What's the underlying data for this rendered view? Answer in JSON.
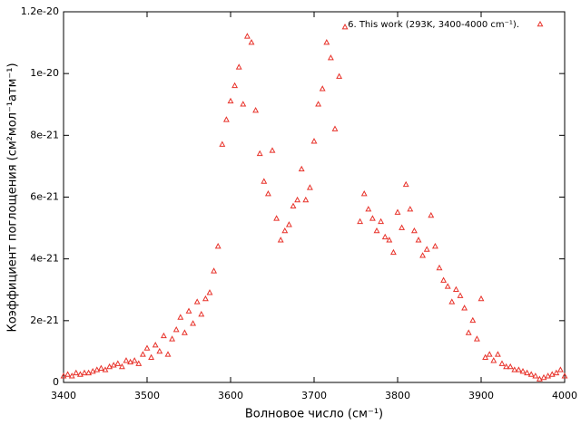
{
  "chart_data": {
    "type": "scatter",
    "xlabel": "Волновое число (см⁻¹)",
    "ylabel": "Коэффициент поглощения (см²мол⁻¹атм⁻¹)",
    "xlim": [
      3400,
      4000
    ],
    "xticks": [
      3400,
      3500,
      3600,
      3700,
      3800,
      3900,
      4000
    ],
    "ylim": [
      0,
      1.2e-20
    ],
    "yticks": [
      0,
      2e-21,
      4e-21,
      6e-21,
      8e-21,
      1e-20,
      1.2e-20
    ],
    "legend": "upper right",
    "series": [
      {
        "name": "6.  This work (293K, 3400-4000 cm⁻¹).",
        "color": "#e8322a",
        "x": [
          3400,
          3405,
          3410,
          3415,
          3420,
          3425,
          3430,
          3435,
          3440,
          3445,
          3450,
          3455,
          3460,
          3465,
          3470,
          3475,
          3480,
          3485,
          3490,
          3495,
          3500,
          3505,
          3510,
          3515,
          3520,
          3525,
          3530,
          3535,
          3540,
          3545,
          3550,
          3555,
          3560,
          3565,
          3570,
          3575,
          3580,
          3585,
          3590,
          3595,
          3600,
          3605,
          3610,
          3615,
          3620,
          3625,
          3630,
          3635,
          3640,
          3645,
          3650,
          3655,
          3660,
          3665,
          3670,
          3675,
          3680,
          3685,
          3690,
          3695,
          3700,
          3705,
          3710,
          3715,
          3720,
          3725,
          3730,
          3737,
          3755,
          3760,
          3765,
          3770,
          3775,
          3780,
          3785,
          3790,
          3795,
          3800,
          3805,
          3810,
          3815,
          3820,
          3825,
          3830,
          3835,
          3840,
          3845,
          3850,
          3855,
          3860,
          3865,
          3870,
          3875,
          3880,
          3885,
          3890,
          3895,
          3900,
          3905,
          3910,
          3915,
          3920,
          3925,
          3930,
          3935,
          3940,
          3945,
          3950,
          3955,
          3960,
          3965,
          3970,
          3975,
          3980,
          3985,
          3990,
          3995,
          4000
        ],
        "values": [
          2e-22,
          2.5e-22,
          2e-22,
          3e-22,
          2.5e-22,
          3e-22,
          3e-22,
          3.5e-22,
          4e-22,
          4.5e-22,
          4e-22,
          5e-22,
          5.5e-22,
          6e-22,
          5e-22,
          7e-22,
          6.5e-22,
          7e-22,
          6e-22,
          9e-22,
          1.1e-21,
          8e-22,
          1.2e-21,
          1e-21,
          1.5e-21,
          9e-22,
          1.4e-21,
          1.7e-21,
          2.1e-21,
          1.6e-21,
          2.3e-21,
          1.9e-21,
          2.6e-21,
          2.2e-21,
          2.7e-21,
          2.9e-21,
          3.6e-21,
          4.4e-21,
          7.7e-21,
          8.5e-21,
          9.1e-21,
          9.6e-21,
          1.02e-20,
          9e-21,
          1.12e-20,
          1.1e-20,
          8.8e-21,
          7.4e-21,
          6.5e-21,
          6.1e-21,
          7.5e-21,
          5.3e-21,
          4.6e-21,
          4.9e-21,
          5.1e-21,
          5.7e-21,
          5.9e-21,
          6.9e-21,
          5.9e-21,
          6.3e-21,
          7.8e-21,
          9e-21,
          9.5e-21,
          1.1e-20,
          1.05e-20,
          8.2e-21,
          9.9e-21,
          1.15e-20,
          5.2e-21,
          6.1e-21,
          5.6e-21,
          5.3e-21,
          4.9e-21,
          5.2e-21,
          4.7e-21,
          4.6e-21,
          4.2e-21,
          5.5e-21,
          5e-21,
          6.4e-21,
          5.6e-21,
          4.9e-21,
          4.6e-21,
          4.1e-21,
          4.3e-21,
          5.4e-21,
          4.4e-21,
          3.7e-21,
          3.3e-21,
          3.1e-21,
          2.6e-21,
          3e-21,
          2.8e-21,
          2.4e-21,
          1.6e-21,
          2e-21,
          1.4e-21,
          2.7e-21,
          8e-22,
          9e-22,
          7e-22,
          9e-22,
          6e-22,
          5e-22,
          5e-22,
          4e-22,
          4e-22,
          3.5e-22,
          3e-22,
          2.5e-22,
          2e-22,
          1e-22,
          1.5e-22,
          2e-22,
          2.5e-22,
          3e-22,
          4e-22,
          2e-22
        ]
      }
    ]
  }
}
